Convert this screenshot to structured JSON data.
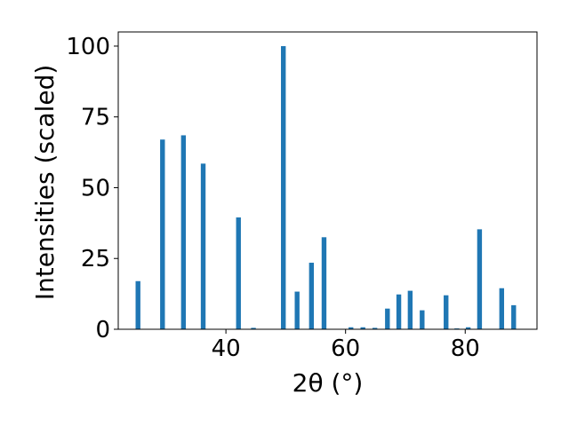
{
  "chart_data": {
    "type": "bar",
    "xlabel": "2θ (°)",
    "ylabel": "Intensities (scaled)",
    "xlim": [
      22,
      92
    ],
    "ylim": [
      0,
      105
    ],
    "xticks": [
      40,
      60,
      80
    ],
    "yticks": [
      0,
      25,
      50,
      75,
      100
    ],
    "grid": false,
    "bar_width": 0.8,
    "color": "#1f77b4",
    "x": [
      25.3,
      29.4,
      32.9,
      36.2,
      42.1,
      44.6,
      49.6,
      51.9,
      54.3,
      56.4,
      60.9,
      62.9,
      64.9,
      67.0,
      68.9,
      70.8,
      72.8,
      76.8,
      78.6,
      80.5,
      82.4,
      86.1,
      88.1
    ],
    "values": [
      17,
      67,
      68.5,
      58.5,
      39.5,
      0.5,
      100,
      13.3,
      23.5,
      32.5,
      0.7,
      0.7,
      0.5,
      7.3,
      12.3,
      13.6,
      6.7,
      12,
      0.3,
      0.7,
      35.3,
      14.5,
      8.5
    ]
  }
}
